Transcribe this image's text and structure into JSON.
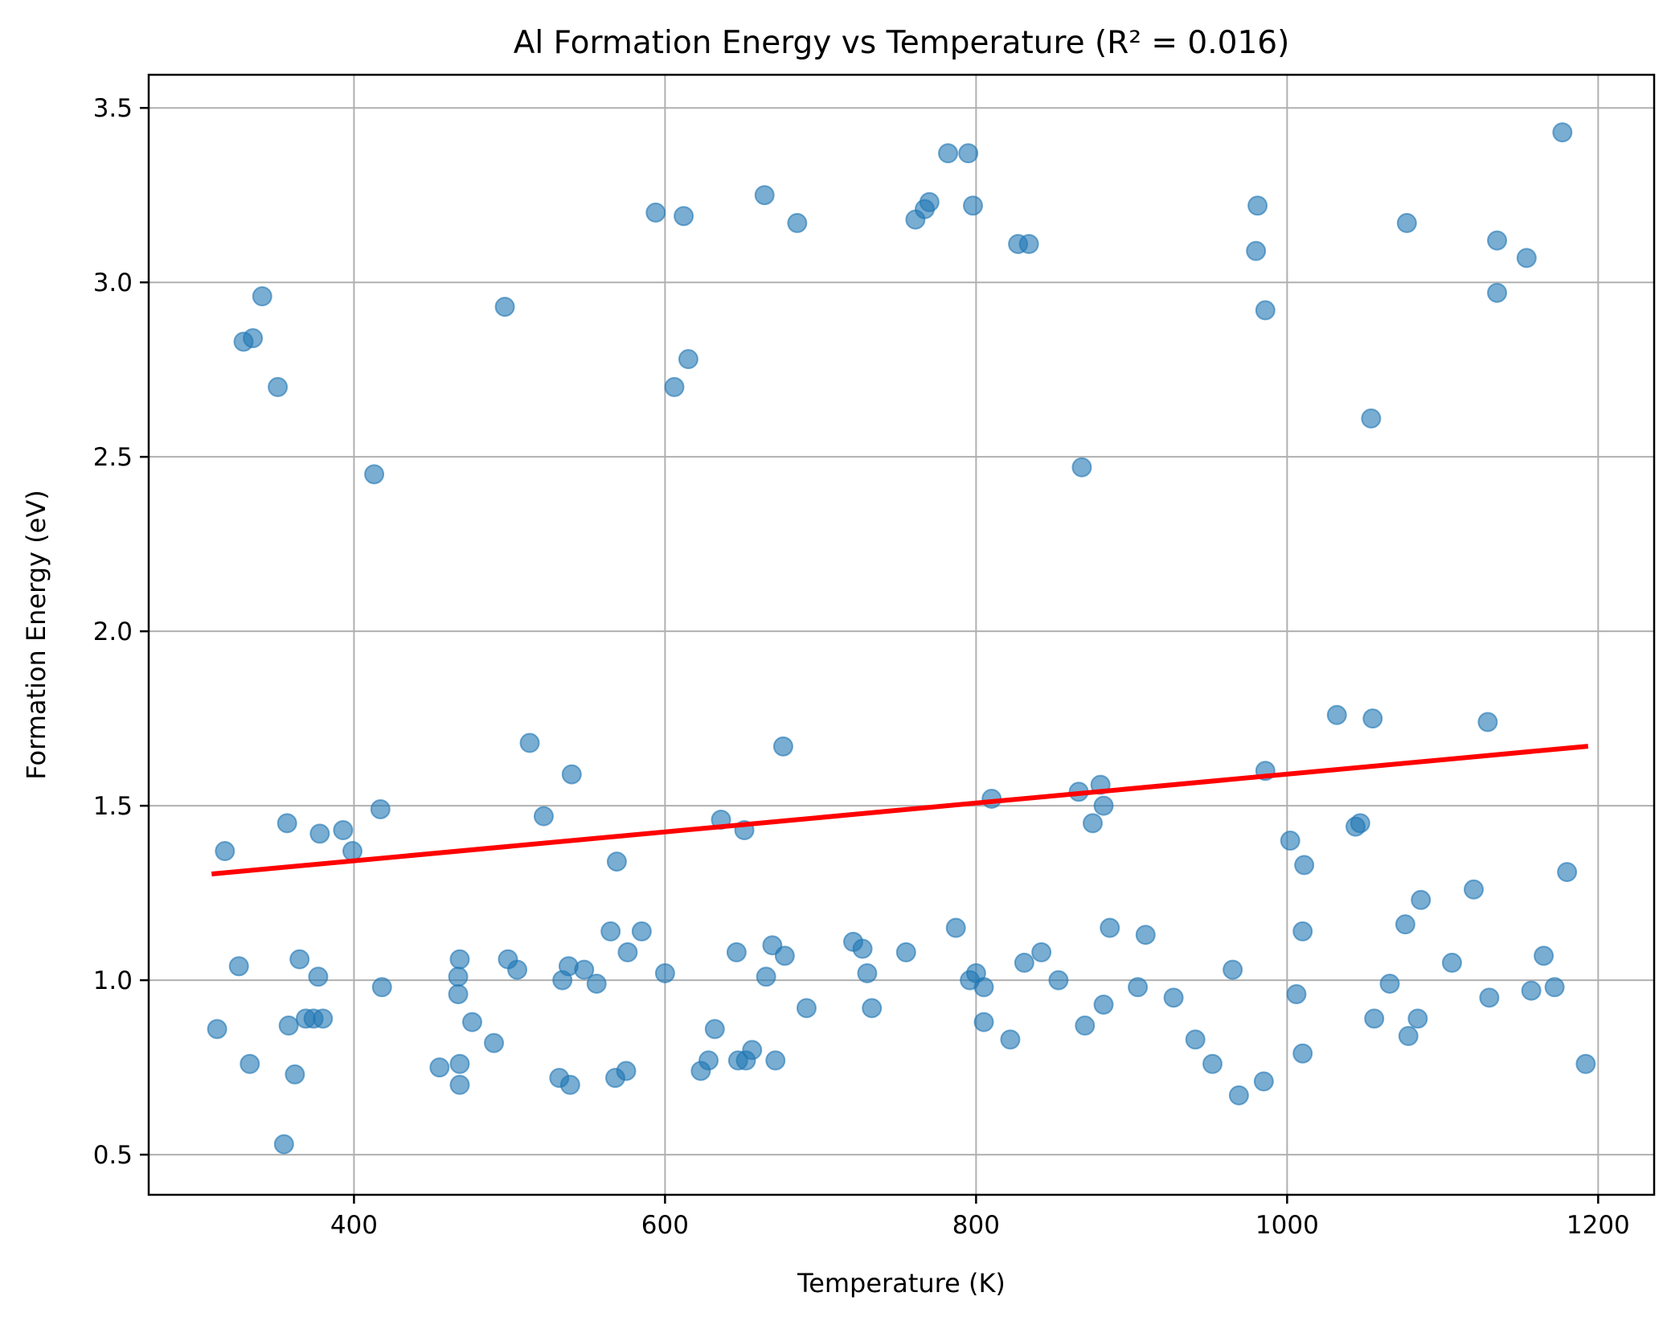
{
  "chart_data": {
    "type": "scatter",
    "title": "Al Formation Energy vs Temperature (R² = 0.016)",
    "xlabel": "Temperature (K)",
    "ylabel": "Formation Energy (eV)",
    "xlim": [
      268,
      1236
    ],
    "ylim": [
      0.385,
      3.595
    ],
    "x_ticks": [
      400,
      600,
      800,
      1000,
      1200
    ],
    "y_ticks": [
      0.5,
      1.0,
      1.5,
      2.0,
      2.5,
      3.0,
      3.5
    ],
    "x_tick_labels": [
      "400",
      "600",
      "800",
      "1000",
      "1200"
    ],
    "y_tick_labels": [
      "0.5",
      "1.0",
      "1.5",
      "2.0",
      "2.5",
      "3.0",
      "3.5"
    ],
    "grid": true,
    "colors": {
      "points": "#1f77b4",
      "fit": "#ff0000",
      "grid": "#b0b0b0"
    },
    "points": [
      [
        312,
        0.86
      ],
      [
        317,
        1.37
      ],
      [
        326,
        1.04
      ],
      [
        329,
        2.83
      ],
      [
        333,
        0.76
      ],
      [
        335,
        2.84
      ],
      [
        341,
        2.96
      ],
      [
        351,
        2.7
      ],
      [
        355,
        0.53
      ],
      [
        357,
        1.45
      ],
      [
        358,
        0.87
      ],
      [
        362,
        0.73
      ],
      [
        365,
        1.06
      ],
      [
        369,
        0.89
      ],
      [
        374,
        0.89
      ],
      [
        377,
        1.01
      ],
      [
        378,
        1.42
      ],
      [
        380,
        0.89
      ],
      [
        393,
        1.43
      ],
      [
        399,
        1.37
      ],
      [
        413,
        2.45
      ],
      [
        417,
        1.49
      ],
      [
        418,
        0.98
      ],
      [
        455,
        0.75
      ],
      [
        467,
        1.01
      ],
      [
        467,
        0.96
      ],
      [
        468,
        1.06
      ],
      [
        468,
        0.76
      ],
      [
        468,
        0.7
      ],
      [
        476,
        0.88
      ],
      [
        490,
        0.82
      ],
      [
        497,
        2.93
      ],
      [
        499,
        1.06
      ],
      [
        505,
        1.03
      ],
      [
        513,
        1.68
      ],
      [
        522,
        1.47
      ],
      [
        532,
        0.72
      ],
      [
        534,
        1.0
      ],
      [
        538,
        1.04
      ],
      [
        539,
        0.7
      ],
      [
        540,
        1.59
      ],
      [
        548,
        1.03
      ],
      [
        556,
        0.99
      ],
      [
        565,
        1.14
      ],
      [
        568,
        0.72
      ],
      [
        569,
        1.34
      ],
      [
        575,
        0.74
      ],
      [
        576,
        1.08
      ],
      [
        585,
        1.14
      ],
      [
        594,
        3.2
      ],
      [
        600,
        1.02
      ],
      [
        606,
        2.7
      ],
      [
        612,
        3.19
      ],
      [
        615,
        2.78
      ],
      [
        623,
        0.74
      ],
      [
        628,
        0.77
      ],
      [
        632,
        0.86
      ],
      [
        636,
        1.46
      ],
      [
        646,
        1.08
      ],
      [
        647,
        0.77
      ],
      [
        651,
        1.43
      ],
      [
        652,
        0.77
      ],
      [
        656,
        0.8
      ],
      [
        664,
        3.25
      ],
      [
        665,
        1.01
      ],
      [
        669,
        1.1
      ],
      [
        671,
        0.77
      ],
      [
        676,
        1.67
      ],
      [
        677,
        1.07
      ],
      [
        685,
        3.17
      ],
      [
        691,
        0.92
      ],
      [
        721,
        1.11
      ],
      [
        727,
        1.09
      ],
      [
        730,
        1.02
      ],
      [
        733,
        0.92
      ],
      [
        755,
        1.08
      ],
      [
        761,
        3.18
      ],
      [
        767,
        3.21
      ],
      [
        770,
        3.23
      ],
      [
        782,
        3.37
      ],
      [
        787,
        1.15
      ],
      [
        795,
        3.37
      ],
      [
        796,
        1.0
      ],
      [
        798,
        3.22
      ],
      [
        800,
        1.02
      ],
      [
        805,
        0.98
      ],
      [
        805,
        0.88
      ],
      [
        810,
        1.52
      ],
      [
        822,
        0.83
      ],
      [
        827,
        3.11
      ],
      [
        831,
        1.05
      ],
      [
        834,
        3.11
      ],
      [
        842,
        1.08
      ],
      [
        853,
        1.0
      ],
      [
        866,
        1.54
      ],
      [
        868,
        2.47
      ],
      [
        870,
        0.87
      ],
      [
        875,
        1.45
      ],
      [
        880,
        1.56
      ],
      [
        882,
        0.93
      ],
      [
        882,
        1.5
      ],
      [
        886,
        1.15
      ],
      [
        904,
        0.98
      ],
      [
        909,
        1.13
      ],
      [
        927,
        0.95
      ],
      [
        941,
        0.83
      ],
      [
        952,
        0.76
      ],
      [
        965,
        1.03
      ],
      [
        969,
        0.67
      ],
      [
        980,
        3.09
      ],
      [
        981,
        3.22
      ],
      [
        985,
        0.71
      ],
      [
        986,
        1.6
      ],
      [
        986,
        2.92
      ],
      [
        1002,
        1.4
      ],
      [
        1006,
        0.96
      ],
      [
        1010,
        0.79
      ],
      [
        1010,
        1.14
      ],
      [
        1011,
        1.33
      ],
      [
        1032,
        1.76
      ],
      [
        1044,
        1.44
      ],
      [
        1047,
        1.45
      ],
      [
        1054,
        2.61
      ],
      [
        1055,
        1.75
      ],
      [
        1056,
        0.89
      ],
      [
        1066,
        0.99
      ],
      [
        1076,
        1.16
      ],
      [
        1077,
        3.17
      ],
      [
        1078,
        0.84
      ],
      [
        1084,
        0.89
      ],
      [
        1086,
        1.23
      ],
      [
        1106,
        1.05
      ],
      [
        1120,
        1.26
      ],
      [
        1129,
        1.74
      ],
      [
        1130,
        0.95
      ],
      [
        1135,
        3.12
      ],
      [
        1135,
        2.97
      ],
      [
        1157,
        0.97
      ],
      [
        1154,
        3.07
      ],
      [
        1165,
        1.07
      ],
      [
        1172,
        0.98
      ],
      [
        1177,
        3.43
      ],
      [
        1180,
        1.31
      ],
      [
        1192,
        0.76
      ]
    ],
    "fit_line": {
      "x": [
        310,
        1192
      ],
      "y": [
        1.305,
        1.67
      ]
    }
  }
}
